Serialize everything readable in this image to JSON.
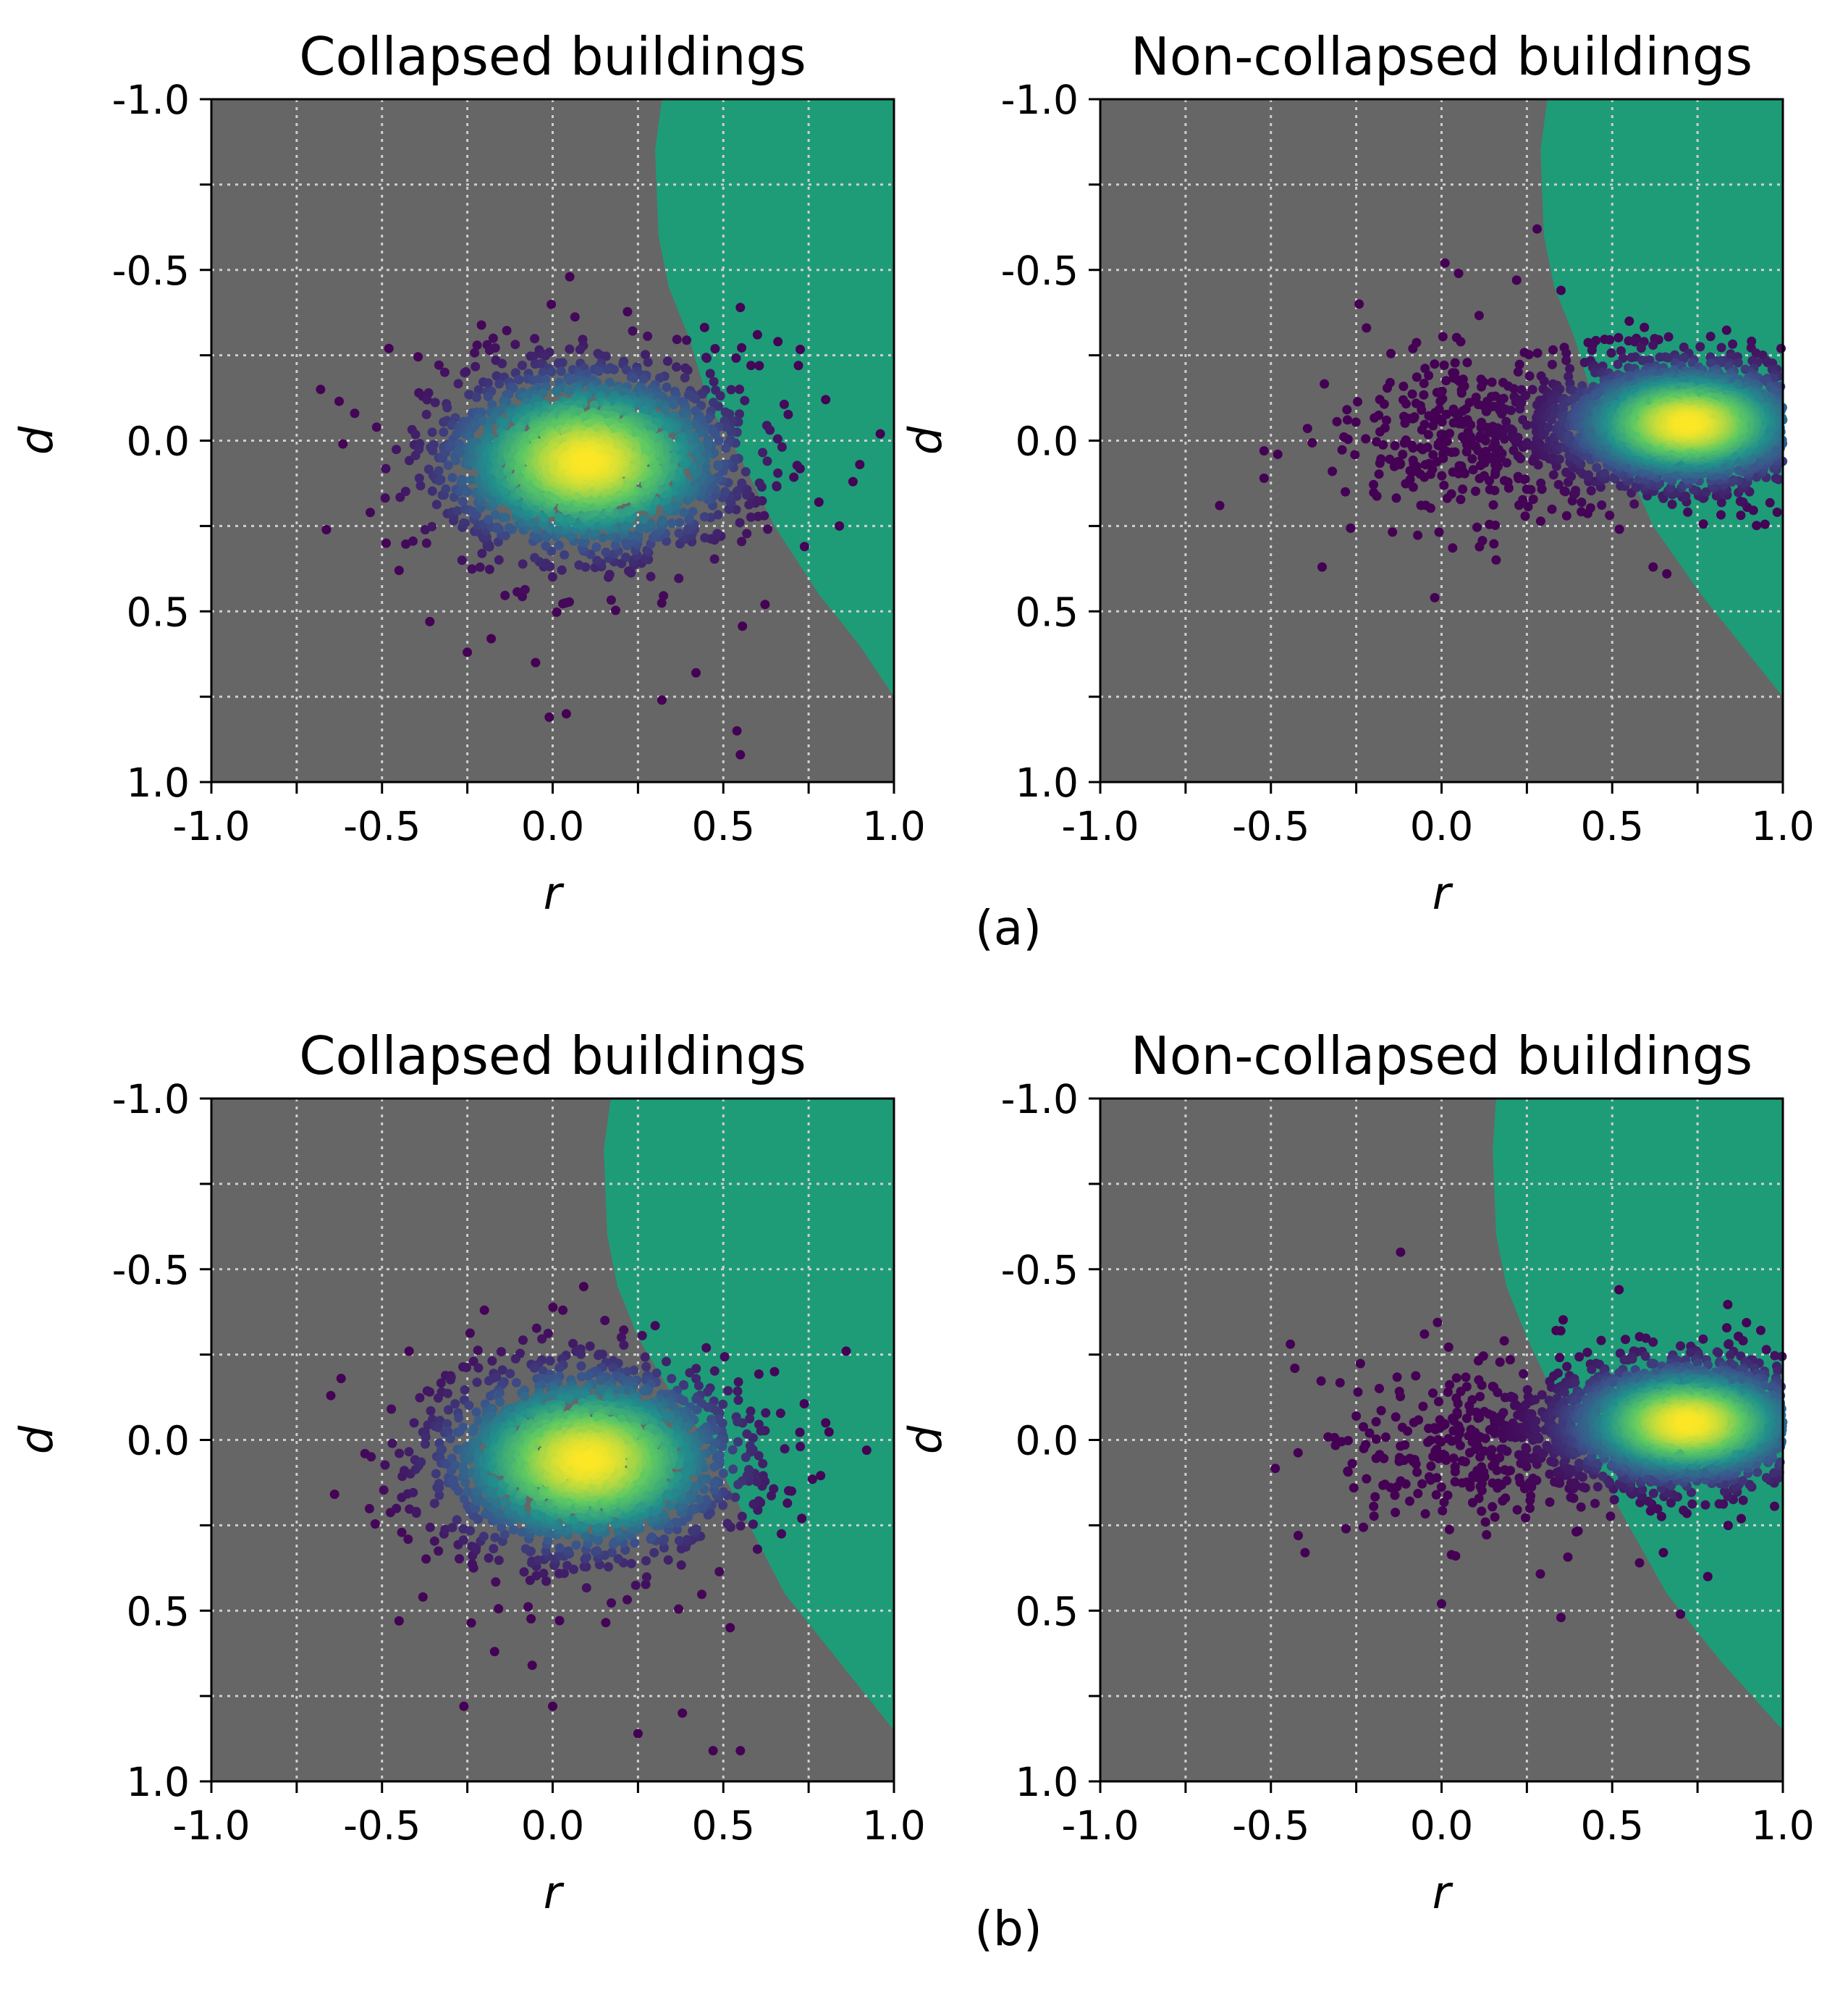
{
  "figure": {
    "row_labels": [
      "(a)",
      "(b)"
    ],
    "colors": {
      "background_region": "#666666",
      "boundary_region": "#1e9c78",
      "grid": "#d0d0d0",
      "colormap": [
        "#440154",
        "#3b528b",
        "#21918c",
        "#5ec962",
        "#fde725"
      ]
    }
  },
  "chart_data": [
    {
      "id": "a-collapsed",
      "row": 0,
      "col": 0,
      "type": "scatter",
      "title": "Collapsed buildings",
      "xlabel": "r",
      "ylabel": "d",
      "xlim": [
        -1.0,
        1.0
      ],
      "ylim": [
        1.0,
        -1.0
      ],
      "y_inverted": true,
      "xticks": [
        "-1.0",
        "-0.5",
        "0.0",
        "0.5",
        "1.0"
      ],
      "yticks": [
        "-1.0",
        "-0.5",
        "0.0",
        "0.5",
        "1.0"
      ],
      "grid": true,
      "boundary": [
        [
          0.32,
          -1.0
        ],
        [
          0.3,
          -0.85
        ],
        [
          0.31,
          -0.6
        ],
        [
          0.34,
          -0.45
        ],
        [
          0.4,
          -0.3
        ],
        [
          0.46,
          -0.1
        ],
        [
          0.55,
          0.05
        ],
        [
          0.65,
          0.25
        ],
        [
          0.78,
          0.45
        ],
        [
          0.9,
          0.6
        ],
        [
          1.0,
          0.75
        ]
      ],
      "cluster": {
        "center": [
          0.1,
          0.06
        ],
        "spread": [
          0.22,
          0.14
        ],
        "n_points": 2200,
        "seed": 11
      },
      "outliers": [
        [
          -0.68,
          -0.15
        ],
        [
          -0.58,
          -0.08
        ],
        [
          -0.48,
          -0.27
        ],
        [
          -0.45,
          0.38
        ],
        [
          -0.36,
          0.53
        ],
        [
          -0.25,
          0.62
        ],
        [
          -0.18,
          0.58
        ],
        [
          -0.05,
          0.65
        ],
        [
          -0.01,
          0.81
        ],
        [
          0.04,
          0.8
        ],
        [
          0.05,
          -0.48
        ],
        [
          0.32,
          0.76
        ],
        [
          0.42,
          0.68
        ],
        [
          0.54,
          0.85
        ],
        [
          0.55,
          0.92
        ],
        [
          0.55,
          -0.39
        ],
        [
          0.6,
          -0.31
        ],
        [
          0.66,
          -0.29
        ],
        [
          0.72,
          -0.22
        ],
        [
          0.8,
          -0.12
        ],
        [
          0.84,
          0.25
        ],
        [
          0.96,
          -0.02
        ],
        [
          0.9,
          0.07
        ],
        [
          0.88,
          0.12
        ],
        [
          0.78,
          0.18
        ],
        [
          0.62,
          0.22
        ]
      ]
    },
    {
      "id": "a-noncollapsed",
      "row": 0,
      "col": 1,
      "type": "scatter",
      "title": "Non-collapsed buildings",
      "xlabel": "r",
      "ylabel": "d",
      "xlim": [
        -1.0,
        1.0
      ],
      "ylim": [
        1.0,
        -1.0
      ],
      "y_inverted": true,
      "xticks": [
        "-1.0",
        "-0.5",
        "0.0",
        "0.5",
        "1.0"
      ],
      "yticks": [
        "-1.0",
        "-0.5",
        "0.0",
        "0.5",
        "1.0"
      ],
      "grid": true,
      "boundary": [
        [
          0.31,
          -1.0
        ],
        [
          0.29,
          -0.85
        ],
        [
          0.3,
          -0.6
        ],
        [
          0.33,
          -0.45
        ],
        [
          0.39,
          -0.3
        ],
        [
          0.45,
          -0.1
        ],
        [
          0.53,
          0.05
        ],
        [
          0.62,
          0.25
        ],
        [
          0.76,
          0.45
        ],
        [
          0.88,
          0.6
        ],
        [
          1.0,
          0.75
        ]
      ],
      "cluster": {
        "center": [
          0.72,
          -0.05
        ],
        "spread": [
          0.18,
          0.09
        ],
        "n_points": 2600,
        "seed": 23
      },
      "tail": {
        "center": [
          0.15,
          0.0
        ],
        "spread": [
          0.22,
          0.12
        ],
        "n_points": 420,
        "seed": 29
      },
      "outliers": [
        [
          -0.65,
          0.19
        ],
        [
          -0.52,
          0.03
        ],
        [
          -0.52,
          0.11
        ],
        [
          -0.48,
          0.04
        ],
        [
          -0.35,
          0.37
        ],
        [
          -0.32,
          0.09
        ],
        [
          -0.22,
          -0.33
        ],
        [
          -0.02,
          0.46
        ],
        [
          0.01,
          -0.52
        ],
        [
          0.05,
          -0.49
        ],
        [
          0.22,
          -0.47
        ],
        [
          0.28,
          -0.62
        ],
        [
          0.35,
          -0.44
        ],
        [
          0.55,
          -0.35
        ],
        [
          0.62,
          0.37
        ],
        [
          0.66,
          0.39
        ]
      ]
    },
    {
      "id": "b-collapsed",
      "row": 1,
      "col": 0,
      "type": "scatter",
      "title": "Collapsed buildings",
      "xlabel": "r",
      "ylabel": "d",
      "xlim": [
        -1.0,
        1.0
      ],
      "ylim": [
        1.0,
        -1.0
      ],
      "y_inverted": true,
      "xticks": [
        "-1.0",
        "-0.5",
        "0.0",
        "0.5",
        "1.0"
      ],
      "yticks": [
        "-1.0",
        "-0.5",
        "0.0",
        "0.5",
        "1.0"
      ],
      "grid": true,
      "boundary": [
        [
          0.17,
          -1.0
        ],
        [
          0.15,
          -0.85
        ],
        [
          0.16,
          -0.6
        ],
        [
          0.19,
          -0.45
        ],
        [
          0.25,
          -0.3
        ],
        [
          0.34,
          -0.15
        ],
        [
          0.45,
          0.0
        ],
        [
          0.55,
          0.2
        ],
        [
          0.68,
          0.45
        ],
        [
          0.84,
          0.65
        ],
        [
          1.0,
          0.85
        ]
      ],
      "cluster": {
        "center": [
          0.1,
          0.06
        ],
        "spread": [
          0.22,
          0.14
        ],
        "n_points": 2200,
        "seed": 37
      },
      "outliers": [
        [
          -0.62,
          -0.18
        ],
        [
          -0.65,
          -0.13
        ],
        [
          -0.55,
          0.04
        ],
        [
          -0.45,
          0.53
        ],
        [
          -0.38,
          0.46
        ],
        [
          -0.26,
          0.78
        ],
        [
          -0.2,
          -0.38
        ],
        [
          -0.17,
          0.62
        ],
        [
          -0.06,
          0.66
        ],
        [
          0.0,
          0.78
        ],
        [
          0.03,
          -0.38
        ],
        [
          0.25,
          0.86
        ],
        [
          0.38,
          0.8
        ],
        [
          0.47,
          0.91
        ],
        [
          0.55,
          0.91
        ],
        [
          0.45,
          -0.27
        ],
        [
          0.65,
          -0.2
        ],
        [
          0.73,
          0.23
        ],
        [
          0.86,
          -0.26
        ],
        [
          0.92,
          0.03
        ],
        [
          0.8,
          -0.05
        ],
        [
          0.7,
          0.15
        ],
        [
          0.6,
          0.32
        ],
        [
          0.52,
          0.55
        ]
      ]
    },
    {
      "id": "b-noncollapsed",
      "row": 1,
      "col": 1,
      "type": "scatter",
      "title": "Non-collapsed buildings",
      "xlabel": "r",
      "ylabel": "d",
      "xlim": [
        -1.0,
        1.0
      ],
      "ylim": [
        1.0,
        -1.0
      ],
      "y_inverted": true,
      "xticks": [
        "-1.0",
        "-0.5",
        "0.0",
        "0.5",
        "1.0"
      ],
      "yticks": [
        "-1.0",
        "-0.5",
        "0.0",
        "0.5",
        "1.0"
      ],
      "grid": true,
      "boundary": [
        [
          0.16,
          -1.0
        ],
        [
          0.15,
          -0.85
        ],
        [
          0.16,
          -0.6
        ],
        [
          0.19,
          -0.45
        ],
        [
          0.25,
          -0.3
        ],
        [
          0.32,
          -0.15
        ],
        [
          0.42,
          0.0
        ],
        [
          0.52,
          0.2
        ],
        [
          0.66,
          0.45
        ],
        [
          0.82,
          0.65
        ],
        [
          1.0,
          0.85
        ]
      ],
      "cluster": {
        "center": [
          0.72,
          -0.05
        ],
        "spread": [
          0.18,
          0.09
        ],
        "n_points": 2600,
        "seed": 41
      },
      "tail": {
        "center": [
          0.15,
          0.0
        ],
        "spread": [
          0.22,
          0.12
        ],
        "n_points": 380,
        "seed": 43
      },
      "outliers": [
        [
          -0.43,
          -0.21
        ],
        [
          -0.42,
          0.28
        ],
        [
          -0.4,
          0.33
        ],
        [
          -0.28,
          0.26
        ],
        [
          -0.25,
          -0.07
        ],
        [
          -0.12,
          -0.55
        ],
        [
          -0.05,
          -0.31
        ],
        [
          0.0,
          0.48
        ],
        [
          0.35,
          0.52
        ],
        [
          0.52,
          -0.44
        ],
        [
          0.58,
          0.36
        ],
        [
          0.65,
          0.33
        ],
        [
          0.7,
          0.51
        ],
        [
          0.84,
          -0.28
        ],
        [
          0.78,
          0.4
        ],
        [
          0.98,
          -0.05
        ]
      ]
    }
  ]
}
